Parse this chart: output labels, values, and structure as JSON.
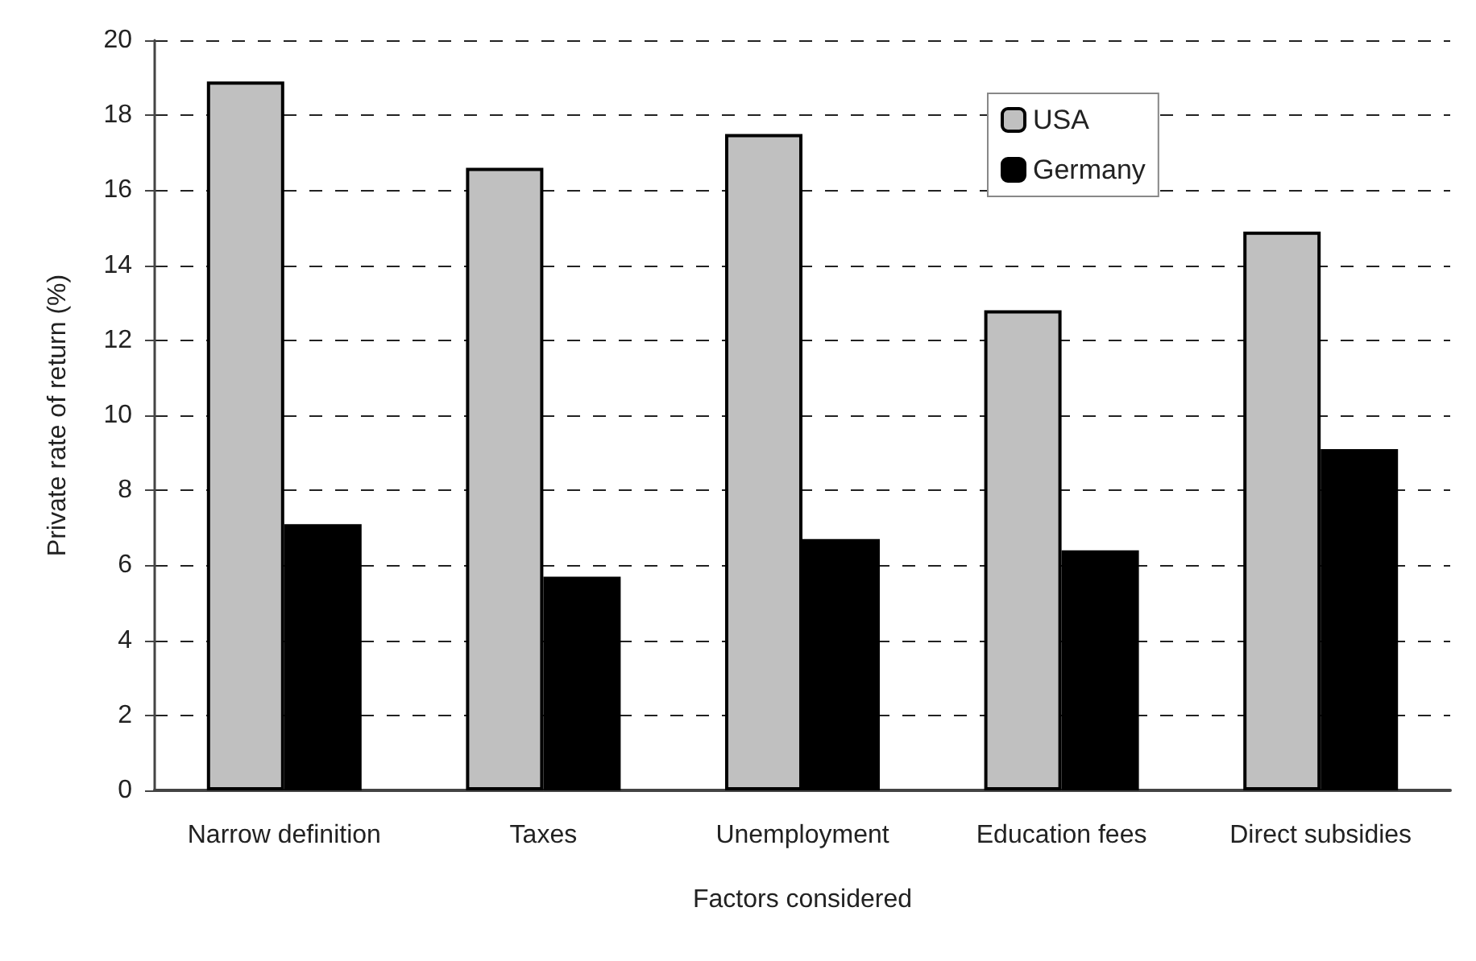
{
  "chart_data": {
    "type": "bar",
    "xlabel": "Factors considered",
    "ylabel": "Private rate of return (%)",
    "categories": [
      "Narrow definition",
      "Taxes",
      "Unemployment",
      "Education fees",
      "Direct subsidies"
    ],
    "series": [
      {
        "name": "USA",
        "color": "#c0c0c0",
        "values": [
          18.9,
          16.6,
          17.5,
          12.8,
          14.9
        ]
      },
      {
        "name": "Germany",
        "color": "#000000",
        "values": [
          7.1,
          5.7,
          6.7,
          6.4,
          9.1
        ]
      }
    ],
    "ylim": [
      0,
      20
    ],
    "yticks": [
      0,
      2,
      4,
      6,
      8,
      10,
      12,
      14,
      16,
      18,
      20
    ],
    "grid": "y",
    "legend": "top right"
  }
}
